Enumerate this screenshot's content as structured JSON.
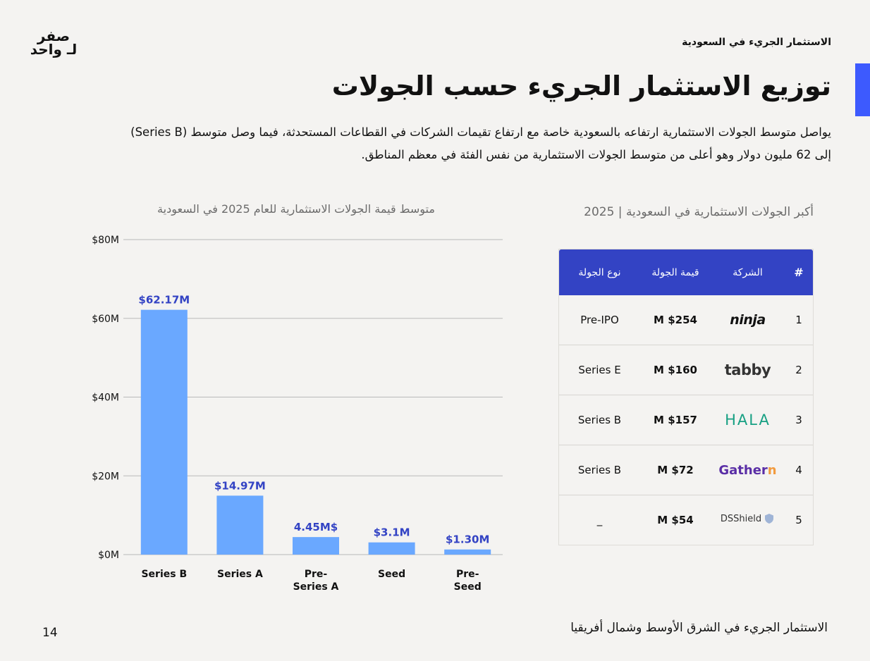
{
  "logo": {
    "line1": "صفر",
    "line2": "لـ واحد"
  },
  "header": {
    "label": "الاستثمار الجريء في السعودية"
  },
  "page_title": "توزيع الاستثمار الجريء حسب الجولات",
  "page_subtitle": "يواصل متوسط الجولات الاستثمارية ارتفاعه بالسعودية خاصة مع ارتفاع تقيمات الشركات في القطاعات المستحدثة، فيما وصل متوسط (Series B) إلى 62 مليون دولار وهو أعلى من متوسط الجولات الاستثمارية من نفس الفئة في معظم المناطق.",
  "colors": {
    "accent": "#3d5afe",
    "bar": "#6aa8ff",
    "bar_label": "#3343c4",
    "table_header": "#3343c4"
  },
  "chart_data": {
    "type": "bar",
    "title": "متوسط قيمة الجولات الاستثمارية للعام 2025 في السعودية",
    "categories": [
      "Series B",
      "Series A",
      "Pre-Series A",
      "Seed",
      "Pre-Seed"
    ],
    "category_lines": [
      [
        "Series B"
      ],
      [
        "Series A"
      ],
      [
        "Pre-",
        "Series A"
      ],
      [
        "Seed"
      ],
      [
        "Pre-",
        "Seed"
      ]
    ],
    "values": [
      62.17,
      14.97,
      4.45,
      3.1,
      1.3
    ],
    "data_labels": [
      "$62.17M",
      "$14.97M",
      "4.45M$",
      "$3.1M",
      "$1.30M"
    ],
    "y_ticks": [
      0,
      20,
      40,
      60,
      80
    ],
    "y_tick_labels": [
      "$0M",
      "$20M",
      "$40M",
      "$60M",
      "$80M"
    ],
    "ylim": [
      0,
      80
    ],
    "grid": true,
    "xlabel": "",
    "ylabel": ""
  },
  "table": {
    "title": "أكبر الجولات الاستثمارية في السعودية | 2025",
    "headers": {
      "rank": "#",
      "company": "الشركة",
      "amount": "قيمة الجولة",
      "type": "نوع الجولة"
    },
    "rows": [
      {
        "rank": "1",
        "company": "ninja",
        "amount": "$254 M",
        "type": "Pre-IPO"
      },
      {
        "rank": "2",
        "company": "tabby",
        "amount": "$160 M",
        "type": "Series E"
      },
      {
        "rank": "3",
        "company": "HALA",
        "amount": "$157 M",
        "type": "Series B"
      },
      {
        "rank": "4",
        "company": "Gathern",
        "amount": "$72 M",
        "type": "Series B"
      },
      {
        "rank": "5",
        "company": "DSShield",
        "amount": "$54 M",
        "type": "_"
      }
    ]
  },
  "footer": {
    "text": "الاستثمار الجريء في الشرق الأوسط وشمال أفريقيا",
    "page_number": "14"
  }
}
